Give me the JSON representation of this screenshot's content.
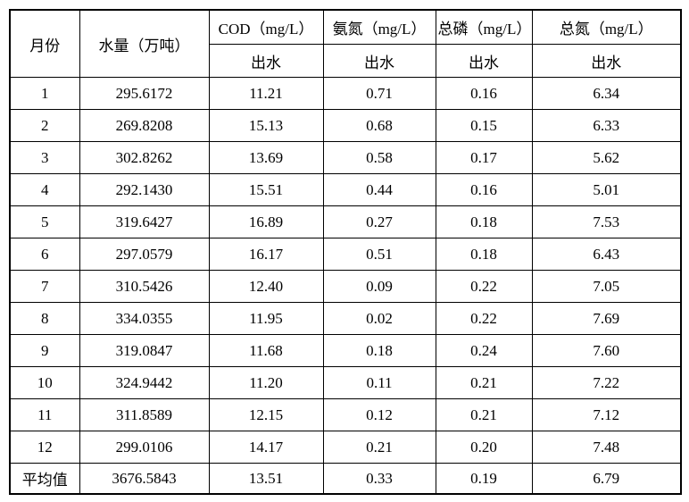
{
  "colors": {
    "background": "#ffffff",
    "border": "#000000",
    "text": "#000000"
  },
  "table": {
    "header": {
      "month": "月份",
      "water": "水量（万吨）",
      "groups": [
        {
          "label": "COD（mg/L）",
          "sub": "出水"
        },
        {
          "label": "氨氮（mg/L）",
          "sub": "出水"
        },
        {
          "label": "总磷（mg/L）",
          "sub": "出水"
        },
        {
          "label": "总氮（mg/L）",
          "sub": "出水"
        }
      ]
    },
    "rows": [
      {
        "month": "1",
        "water": "295.6172",
        "cod": "11.21",
        "nh3n": "0.71",
        "tp": "0.16",
        "tn": "6.34"
      },
      {
        "month": "2",
        "water": "269.8208",
        "cod": "15.13",
        "nh3n": "0.68",
        "tp": "0.15",
        "tn": "6.33"
      },
      {
        "month": "3",
        "water": "302.8262",
        "cod": "13.69",
        "nh3n": "0.58",
        "tp": "0.17",
        "tn": "5.62"
      },
      {
        "month": "4",
        "water": "292.1430",
        "cod": "15.51",
        "nh3n": "0.44",
        "tp": "0.16",
        "tn": "5.01"
      },
      {
        "month": "5",
        "water": "319.6427",
        "cod": "16.89",
        "nh3n": "0.27",
        "tp": "0.18",
        "tn": "7.53"
      },
      {
        "month": "6",
        "water": "297.0579",
        "cod": "16.17",
        "nh3n": "0.51",
        "tp": "0.18",
        "tn": "6.43"
      },
      {
        "month": "7",
        "water": "310.5426",
        "cod": "12.40",
        "nh3n": "0.09",
        "tp": "0.22",
        "tn": "7.05"
      },
      {
        "month": "8",
        "water": "334.0355",
        "cod": "11.95",
        "nh3n": "0.02",
        "tp": "0.22",
        "tn": "7.69"
      },
      {
        "month": "9",
        "water": "319.0847",
        "cod": "11.68",
        "nh3n": "0.18",
        "tp": "0.24",
        "tn": "7.60"
      },
      {
        "month": "10",
        "water": "324.9442",
        "cod": "11.20",
        "nh3n": "0.11",
        "tp": "0.21",
        "tn": "7.22"
      },
      {
        "month": "11",
        "water": "311.8589",
        "cod": "12.15",
        "nh3n": "0.12",
        "tp": "0.21",
        "tn": "7.12"
      },
      {
        "month": "12",
        "water": "299.0106",
        "cod": "14.17",
        "nh3n": "0.21",
        "tp": "0.20",
        "tn": "7.48"
      },
      {
        "month": "平均值",
        "water": "3676.5843",
        "cod": "13.51",
        "nh3n": "0.33",
        "tp": "0.19",
        "tn": "6.79"
      }
    ]
  }
}
